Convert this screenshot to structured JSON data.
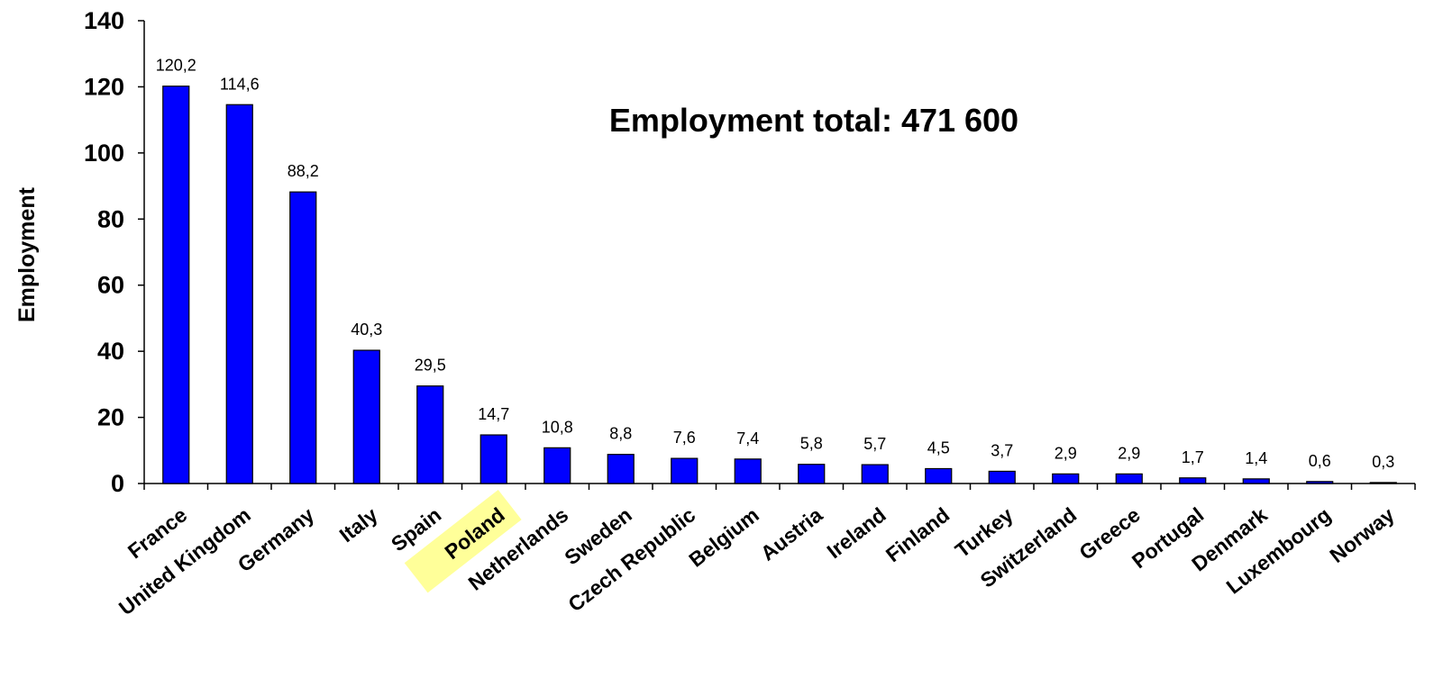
{
  "chart_data": {
    "type": "bar",
    "categories": [
      "France",
      "United Kingdom",
      "Germany",
      "Italy",
      "Spain",
      "Poland",
      "Netherlands",
      "Sweden",
      "Czech Republic",
      "Belgium",
      "Austria",
      "Ireland",
      "Finland",
      "Turkey",
      "Switzerland",
      "Greece",
      "Portugal",
      "Denmark",
      "Luxembourg",
      "Norway"
    ],
    "values": [
      120.2,
      114.6,
      88.2,
      40.3,
      29.5,
      14.7,
      10.8,
      8.8,
      7.6,
      7.4,
      5.8,
      5.7,
      4.5,
      3.7,
      2.9,
      2.9,
      1.7,
      1.4,
      0.6,
      0.3
    ],
    "data_labels": [
      "120,2",
      "114,6",
      "88,2",
      "40,3",
      "29,5",
      "14,7",
      "10,8",
      "8,8",
      "7,6",
      "7,4",
      "5,8",
      "5,7",
      "4,5",
      "3,7",
      "2,9",
      "2,9",
      "1,7",
      "1,4",
      "0,6",
      "0,3"
    ],
    "ylabel": "Employment",
    "xlabel": "",
    "ylim": [
      0,
      140
    ],
    "yticks": [
      "0",
      "20",
      "40",
      "60",
      "80",
      "100",
      "120",
      "140"
    ],
    "annotation": "Employment total: 471 600",
    "highlight_category": "Poland",
    "bar_color": "#0000ff",
    "highlight_color": "#ffff99",
    "grid": false,
    "legend": "none"
  }
}
